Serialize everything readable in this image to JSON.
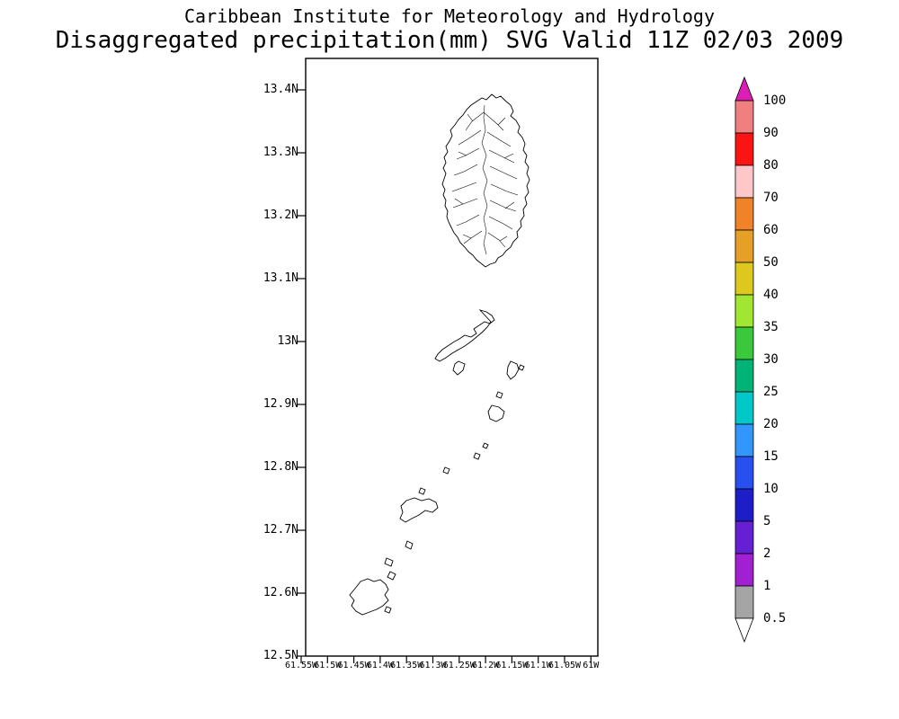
{
  "title": {
    "line1": "Caribbean Institute for Meteorology and Hydrology",
    "line2": "Disaggregated precipitation(mm) SVG Valid 11Z 02/03 2009"
  },
  "map": {
    "y_axis_labels": [
      "13.4N",
      "13.3N",
      "13.2N",
      "13.1N",
      "13N",
      "12.9N",
      "12.8N",
      "12.7N",
      "12.6N",
      "12.5N"
    ],
    "x_axis_labels": [
      "61.55W",
      "61.5W",
      "61.45W",
      "61.4W",
      "61.35W",
      "61.3W",
      "61.25W",
      "61.2W",
      "61.15W",
      "61.1W",
      "61.05W",
      "61W"
    ]
  },
  "legend": {
    "boundary_labels": [
      "100",
      "90",
      "80",
      "70",
      "60",
      "50",
      "40",
      "35",
      "30",
      "25",
      "20",
      "15",
      "10",
      "5",
      "2",
      "1",
      "0.5"
    ],
    "band_colors": [
      "#F08080",
      "#FA1414",
      "#FFC8C8",
      "#F08228",
      "#E6A028",
      "#DCC81E",
      "#A0E632",
      "#3CC83C",
      "#00B478",
      "#00C8C8",
      "#3296FA",
      "#2850F0",
      "#1E1EC8",
      "#6420D2",
      "#A020D2",
      "#A5A5A5"
    ],
    "above_max_color": "#DC1EB4",
    "below_min_color": "#FFFFFF",
    "units": "mm"
  }
}
